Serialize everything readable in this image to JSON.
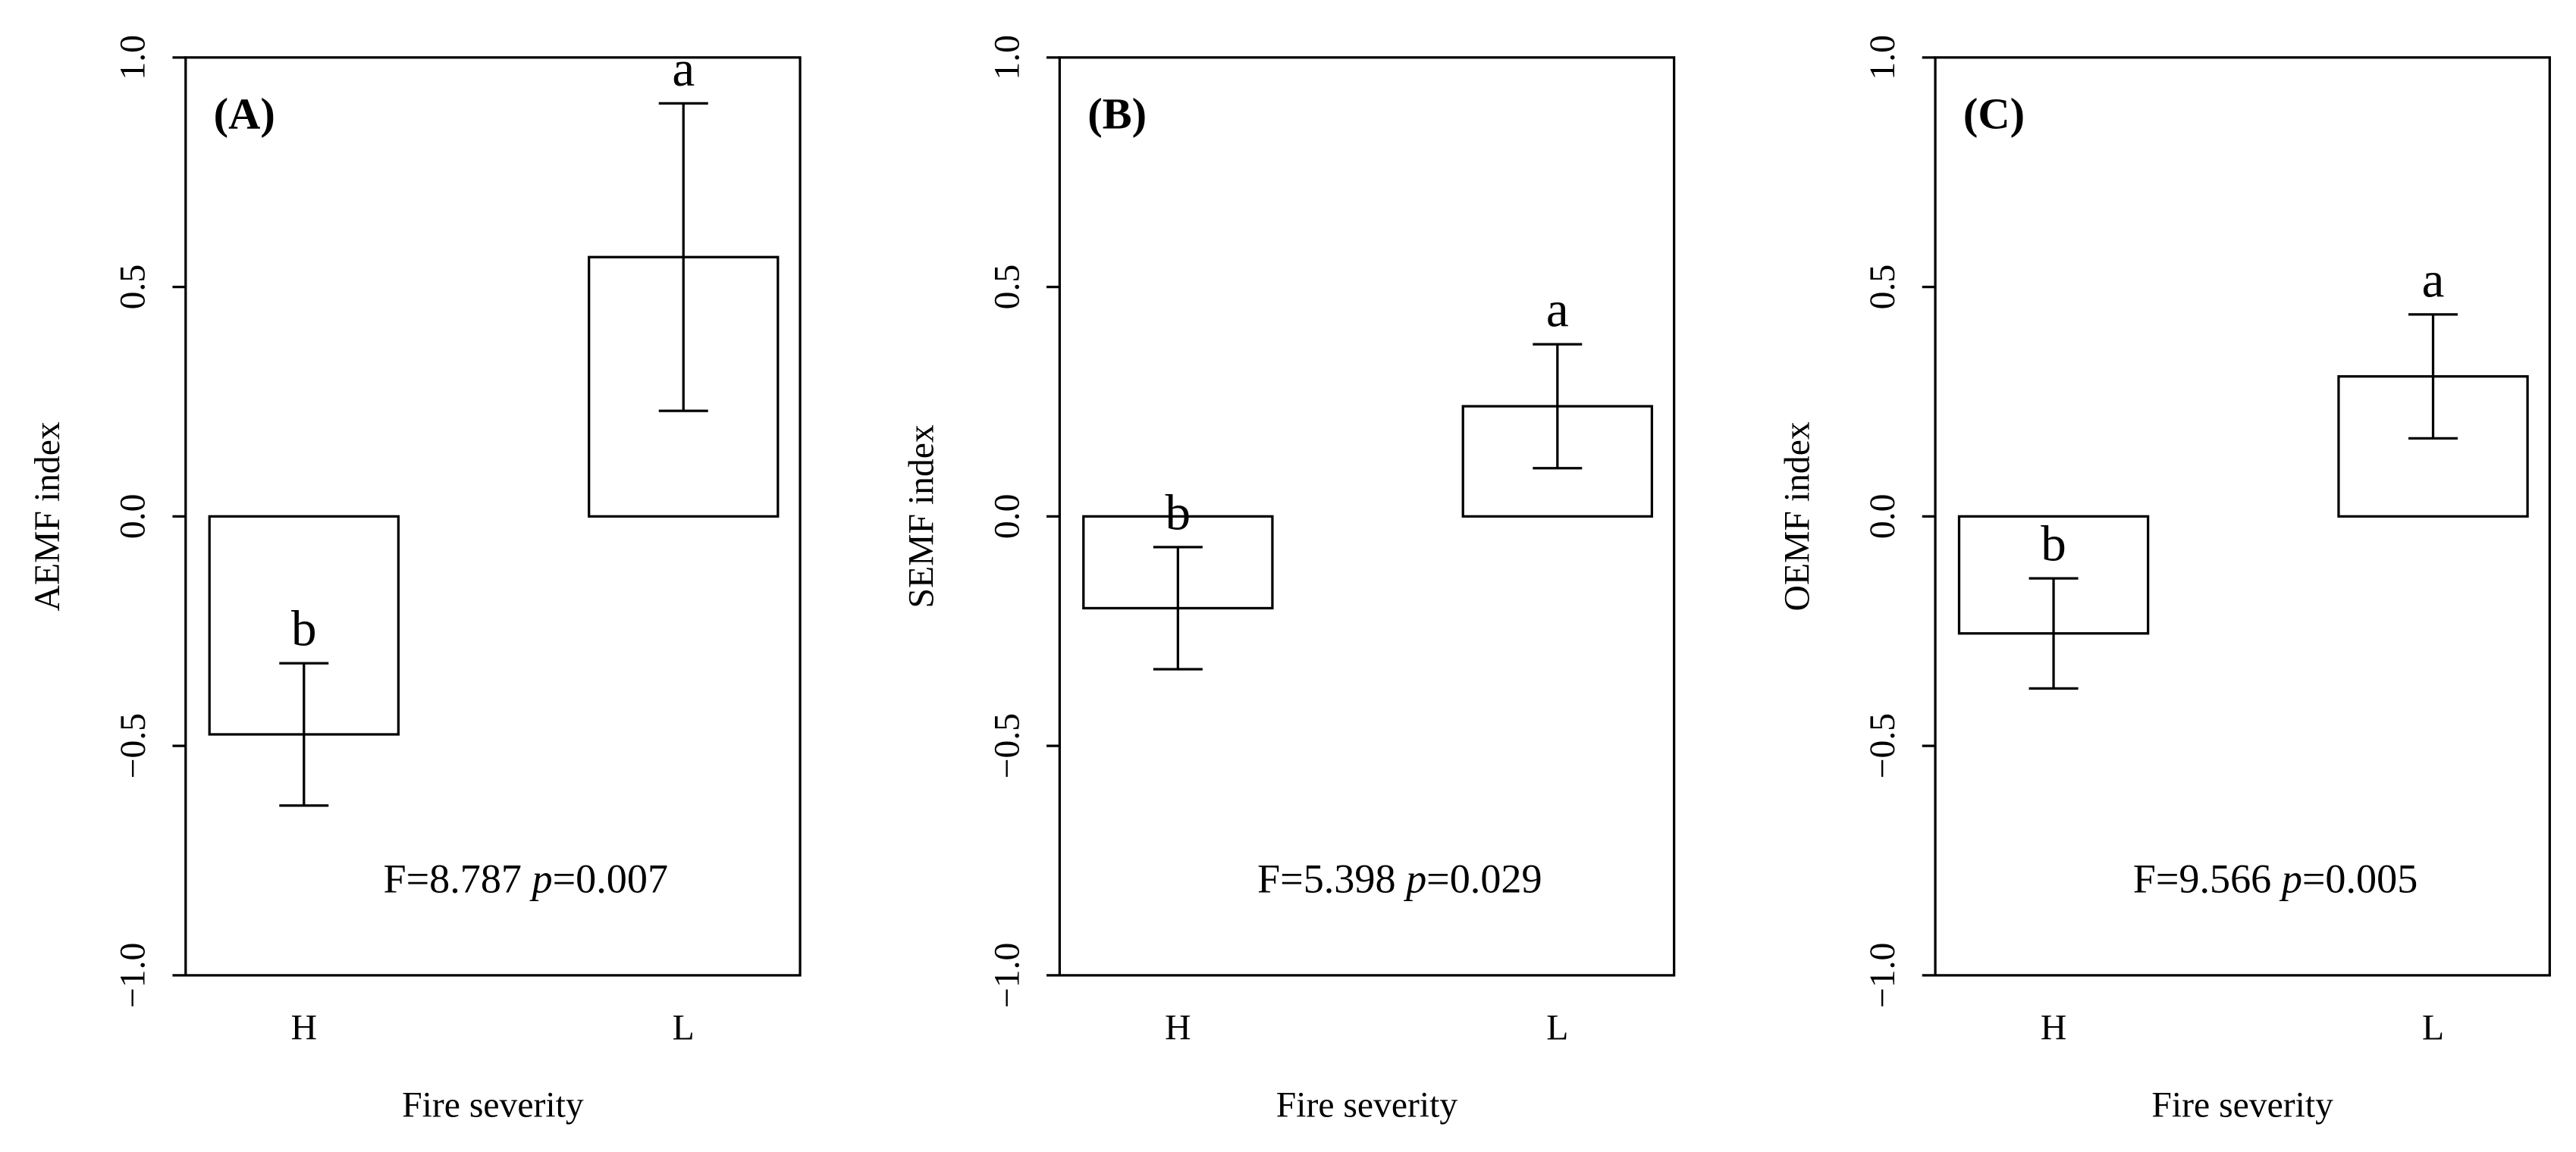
{
  "chart_data": [
    {
      "type": "bar",
      "panel_label": "(A)",
      "ylabel": "AEMF index",
      "xlabel": "Fire severity",
      "categories": [
        "H",
        "L"
      ],
      "values": [
        -0.475,
        0.565
      ],
      "errors": [
        0.155,
        0.335
      ],
      "letters": [
        "b",
        "a"
      ],
      "annotation": [
        "F=8.787",
        "p",
        "=0.007"
      ],
      "color": "#ffffff",
      "ylim": [
        -1,
        1
      ],
      "yticks": [
        {
          "value": -1,
          "label": "−1.0"
        },
        {
          "value": -0.5,
          "label": "−0.5"
        },
        {
          "value": 0,
          "label": "0.0"
        },
        0.5,
        {
          "value": 1,
          "label": "1.0"
        }
      ]
    },
    {
      "type": "bar",
      "panel_label": "(B)",
      "ylabel": "SEMF index",
      "xlabel": "Fire severity",
      "categories": [
        "H",
        "L"
      ],
      "values": [
        -0.2,
        0.24
      ],
      "errors": [
        0.133,
        0.135
      ],
      "letters": [
        "b",
        "a"
      ],
      "annotation": [
        "F=5.398",
        "p",
        "=0.029"
      ],
      "color": "#ffffff",
      "ylim": [
        -1,
        1
      ],
      "yticks": [
        {
          "value": -1,
          "label": "−1.0"
        },
        {
          "value": -0.5,
          "label": "−0.5"
        },
        {
          "value": 0,
          "label": "0.0"
        },
        0.5,
        {
          "value": 1,
          "label": "1.0"
        }
      ]
    },
    {
      "type": "bar",
      "panel_label": "(C)",
      "ylabel": "OEMF index",
      "xlabel": "Fire severity",
      "categories": [
        "H",
        "L"
      ],
      "values": [
        -0.255,
        0.305
      ],
      "errors": [
        0.12,
        0.135
      ],
      "letters": [
        "b",
        "a"
      ],
      "annotation": [
        "F=9.566",
        "p",
        "=0.005"
      ],
      "color": "#ffffff",
      "ylim": [
        -1,
        1
      ],
      "yticks": [
        {
          "value": -1,
          "label": "−1.0"
        },
        {
          "value": -0.5,
          "label": "−0.5"
        },
        {
          "value": 0,
          "label": "0.0"
        },
        0.5,
        {
          "value": 1,
          "label": "1.0"
        }
      ]
    }
  ]
}
